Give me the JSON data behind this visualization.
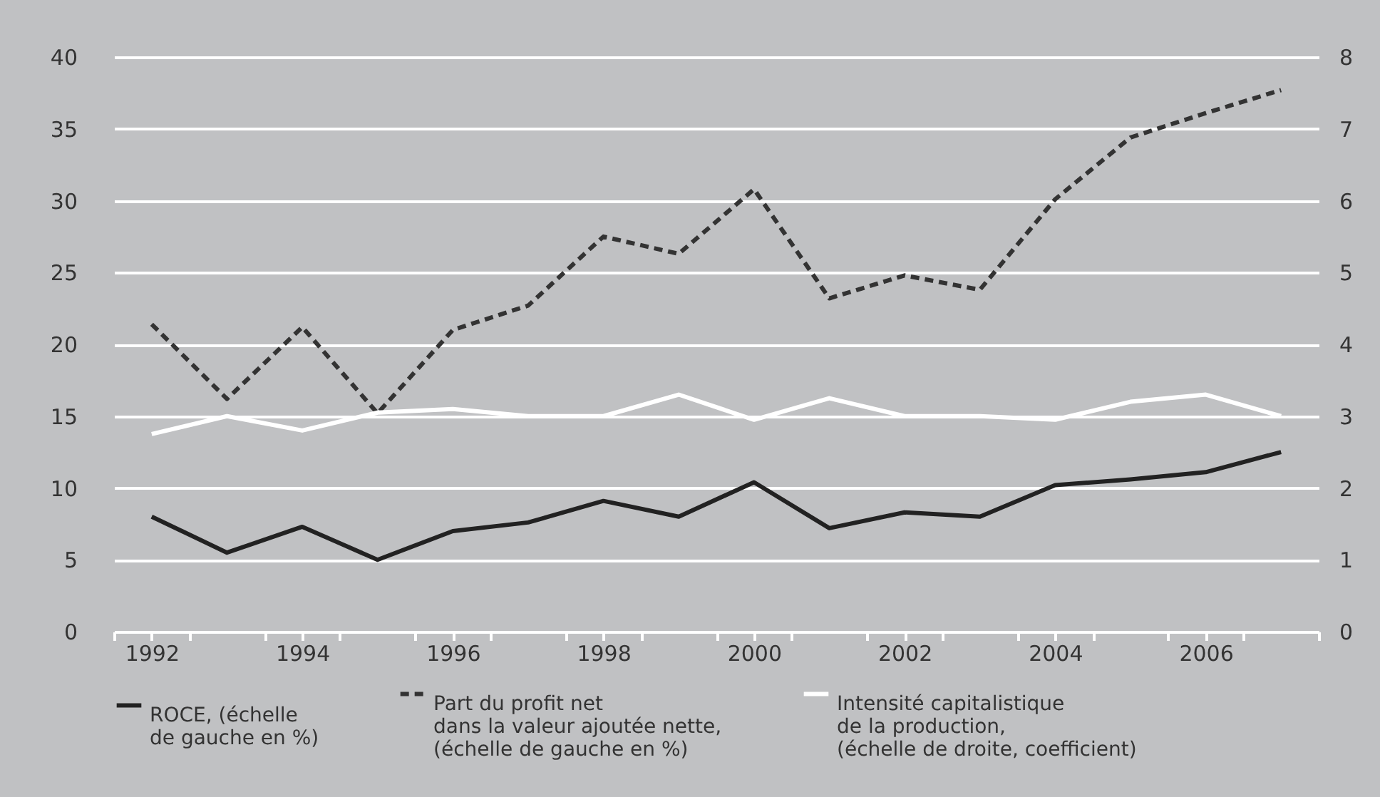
{
  "chart_data": {
    "type": "line",
    "x": [
      1992,
      1993,
      1994,
      1995,
      1996,
      1997,
      1998,
      1999,
      2000,
      2001,
      2002,
      2003,
      2004,
      2005,
      2006,
      2007
    ],
    "series": [
      {
        "name": "ROCE, (échelle\nde gauche en %)",
        "color": "#222222",
        "line_style": "solid",
        "values": [
          8.0,
          5.5,
          7.3,
          5.0,
          7.0,
          7.6,
          9.1,
          8.0,
          10.4,
          7.2,
          8.3,
          8.0,
          10.2,
          10.6,
          11.1,
          12.5
        ]
      },
      {
        "name": "Part du profit net\ndans la valeur ajoutée nette,\n(échelle de gauche en %)",
        "color": "#333333",
        "line_style": "dashed",
        "values": [
          21.4,
          16.2,
          21.2,
          15.2,
          21.0,
          22.7,
          27.5,
          26.3,
          30.8,
          23.2,
          24.8,
          23.8,
          30.1,
          34.4,
          36.1,
          37.7
        ]
      },
      {
        "name": "Intensité capitalistique\nde la production,\n(échelle de droite, coefficient)",
        "color": "#ffffff",
        "line_style": "solid",
        "axis": "y2",
        "values": [
          2.75,
          3.0,
          2.8,
          3.05,
          3.1,
          3.0,
          3.0,
          3.3,
          2.95,
          3.25,
          3.0,
          3.0,
          2.95,
          3.2,
          3.3,
          3.0
        ]
      }
    ],
    "xlim": [
      1991.5,
      2007.5
    ],
    "xticks": [
      {
        "value": 1991.5,
        "label": null
      },
      1992,
      {
        "value": 1992.5,
        "label": null
      },
      {
        "value": 1993.5,
        "label": null
      },
      1994,
      {
        "value": 1994.5,
        "label": null
      },
      {
        "value": 1995.5,
        "label": null
      },
      1996,
      {
        "value": 1996.5,
        "label": null
      },
      {
        "value": 1997.5,
        "label": null
      },
      1998,
      {
        "value": 1998.5,
        "label": null
      },
      {
        "value": 1999.5,
        "label": null
      },
      2000,
      {
        "value": 2000.5,
        "label": null
      },
      {
        "value": 2001.5,
        "label": null
      },
      2002,
      {
        "value": 2002.5,
        "label": null
      },
      {
        "value": 2003.5,
        "label": null
      },
      2004,
      {
        "value": 2004.5,
        "label": null
      },
      {
        "value": 2005.5,
        "label": null
      },
      2006,
      {
        "value": 2006.5,
        "label": null
      },
      {
        "value": 2007.5,
        "label": null
      }
    ],
    "ylim": [
      0,
      40
    ],
    "yticks": [
      0,
      5,
      10,
      15,
      20,
      25,
      30,
      35,
      40
    ],
    "y2lim": [
      0,
      8
    ],
    "y2ticks": [
      0,
      1,
      2,
      3,
      4,
      5,
      6,
      7,
      8
    ],
    "grid": "y",
    "legend": "bottom"
  }
}
